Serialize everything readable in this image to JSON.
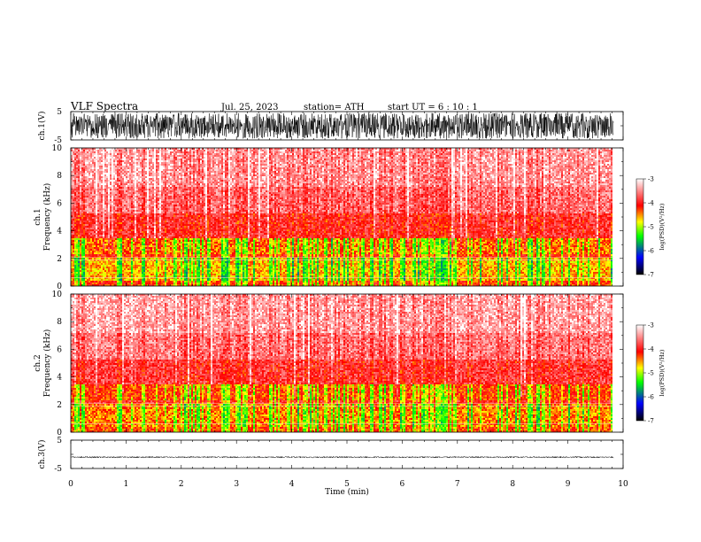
{
  "chart_data": {
    "type": "heatmap",
    "header": {
      "title": "VLF  Spectra",
      "date": "Jul.  25, 2023",
      "station": "station= ATH",
      "start_ut": "start  UT  =   6  : 10 : 1"
    },
    "x": {
      "label": "Time  (min)",
      "range": [
        0,
        10
      ],
      "ticks": [
        "0",
        "1",
        "2",
        "3",
        "4",
        "5",
        "6",
        "7",
        "8",
        "9",
        "10"
      ],
      "data_end_min": 9.83
    },
    "panels": [
      {
        "id": "ch1-waveform",
        "type": "line",
        "ylabel": "ch.1(V)",
        "yrange": [
          -5,
          5
        ],
        "yticks": [
          "5",
          "-5"
        ],
        "amplitude_fraction": 0.9,
        "color": "#000000"
      },
      {
        "id": "ch1-spectrogram",
        "type": "heatmap",
        "ylabel_line1": "ch.1",
        "ylabel_line2": "Frequency  (kHz)",
        "yrange": [
          0,
          10
        ],
        "yticks": [
          "0",
          "2",
          "4",
          "6",
          "8",
          "10"
        ],
        "bands_khz": [
          {
            "from": 0,
            "to": 0.4,
            "level": -4.2
          },
          {
            "from": 0.4,
            "to": 2.0,
            "level": -4.6
          },
          {
            "from": 2.0,
            "to": 2.3,
            "level": -4.1
          },
          {
            "from": 2.3,
            "to": 3.5,
            "level": -4.4
          },
          {
            "from": 3.5,
            "to": 5.3,
            "level": -3.9
          },
          {
            "from": 5.3,
            "to": 7.2,
            "level": -3.6
          },
          {
            "from": 7.2,
            "to": 10,
            "level": -3.4
          }
        ]
      },
      {
        "id": "ch2-spectrogram",
        "type": "heatmap",
        "ylabel_line1": "ch.2",
        "ylabel_line2": "Frequency  (kHz)",
        "yrange": [
          0,
          10
        ],
        "yticks": [
          "0",
          "2",
          "4",
          "6",
          "8",
          "10"
        ],
        "bands_khz": [
          {
            "from": 0,
            "to": 0.4,
            "level": -4.3
          },
          {
            "from": 0.4,
            "to": 2.0,
            "level": -4.5
          },
          {
            "from": 2.0,
            "to": 2.3,
            "level": -4.0
          },
          {
            "from": 2.3,
            "to": 3.5,
            "level": -4.3
          },
          {
            "from": 3.5,
            "to": 5.3,
            "level": -3.9
          },
          {
            "from": 5.3,
            "to": 7.2,
            "level": -3.6
          },
          {
            "from": 7.2,
            "to": 10,
            "level": -3.4
          }
        ]
      },
      {
        "id": "ch3-waveform",
        "type": "line",
        "ylabel": "ch.3(V)",
        "yrange": [
          -5,
          5
        ],
        "yticks": [
          "5",
          "-5"
        ],
        "baseline_v": -1.0,
        "amplitude_fraction": 0.05,
        "color": "#000000"
      }
    ],
    "colorbar": {
      "label": "log(PSD)(V²/Hz)",
      "range": [
        -7,
        -3
      ],
      "ticks": [
        "-3",
        "-4",
        "-5",
        "-6",
        "-7"
      ],
      "colors": [
        "#000000",
        "#0000ff",
        "#00ff00",
        "#ffff00",
        "#ff0000",
        "#ffffff"
      ]
    }
  }
}
